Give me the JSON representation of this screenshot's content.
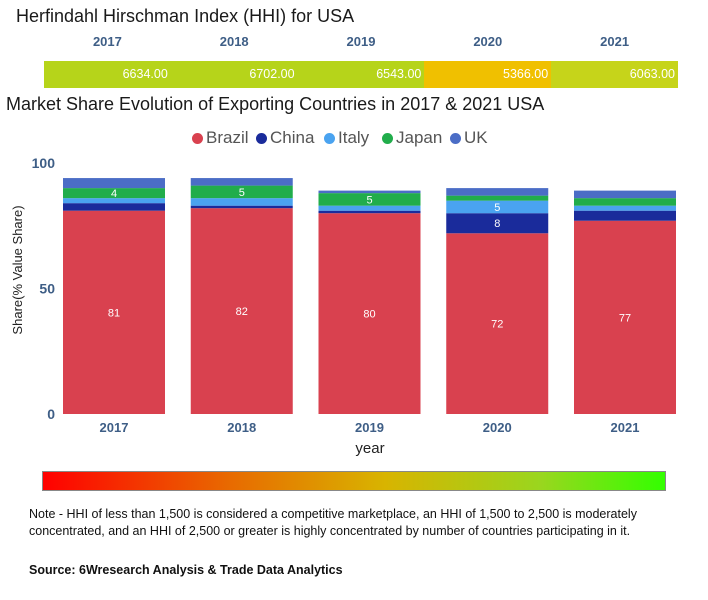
{
  "hhi": {
    "title": "Herfindahl Hirschman Index (HHI) for USA",
    "years": [
      "2017",
      "2018",
      "2019",
      "2020",
      "2021"
    ],
    "values": [
      "6634.00",
      "6702.00",
      "6543.00",
      "5366.00",
      "6063.00"
    ],
    "colors": [
      "#b6d41a",
      "#b6d41a",
      "#b6d41a",
      "#f0c000",
      "#c6d41a"
    ]
  },
  "chart_data": {
    "type": "bar",
    "stacked": true,
    "title": "Market Share Evolution of Exporting Countries in 2017 & 2021 USA",
    "xlabel": "year",
    "ylabel": "Share(% Value Share)",
    "ylim": [
      0,
      100
    ],
    "yticks": [
      "0",
      "50",
      "100"
    ],
    "categories": [
      "2017",
      "2018",
      "2019",
      "2020",
      "2021"
    ],
    "series": [
      {
        "name": "Brazil",
        "color": "#d9414f",
        "values": [
          81,
          82,
          80,
          72,
          77
        ],
        "labels": [
          "81",
          "82",
          "80",
          "72",
          "77"
        ]
      },
      {
        "name": "China",
        "color": "#1a2b9b",
        "values": [
          3,
          1,
          1,
          8,
          4
        ],
        "labels": [
          "",
          "",
          "",
          "8",
          ""
        ]
      },
      {
        "name": "Italy",
        "color": "#4aa3f0",
        "values": [
          2,
          3,
          2,
          5,
          2
        ],
        "labels": [
          "",
          "",
          "",
          "5",
          ""
        ]
      },
      {
        "name": "Japan",
        "color": "#21ad4b",
        "values": [
          4,
          5,
          5,
          2,
          3
        ],
        "labels": [
          "4",
          "5",
          "5",
          "",
          ""
        ]
      },
      {
        "name": "UK",
        "color": "#4b6dc6",
        "values": [
          4,
          3,
          1,
          3,
          3
        ],
        "labels": [
          "",
          "",
          "",
          "",
          ""
        ]
      }
    ]
  },
  "footer": {
    "note": "Note - HHI of less than 1,500 is considered a competitive marketplace, an HHI of 1,500 to 2,500 is moderately concentrated, and an HHI of 2,500 or greater is highly concentrated by number of countries participating in it.",
    "source": "Source: 6Wresearch Analysis & Trade Data Analytics"
  }
}
